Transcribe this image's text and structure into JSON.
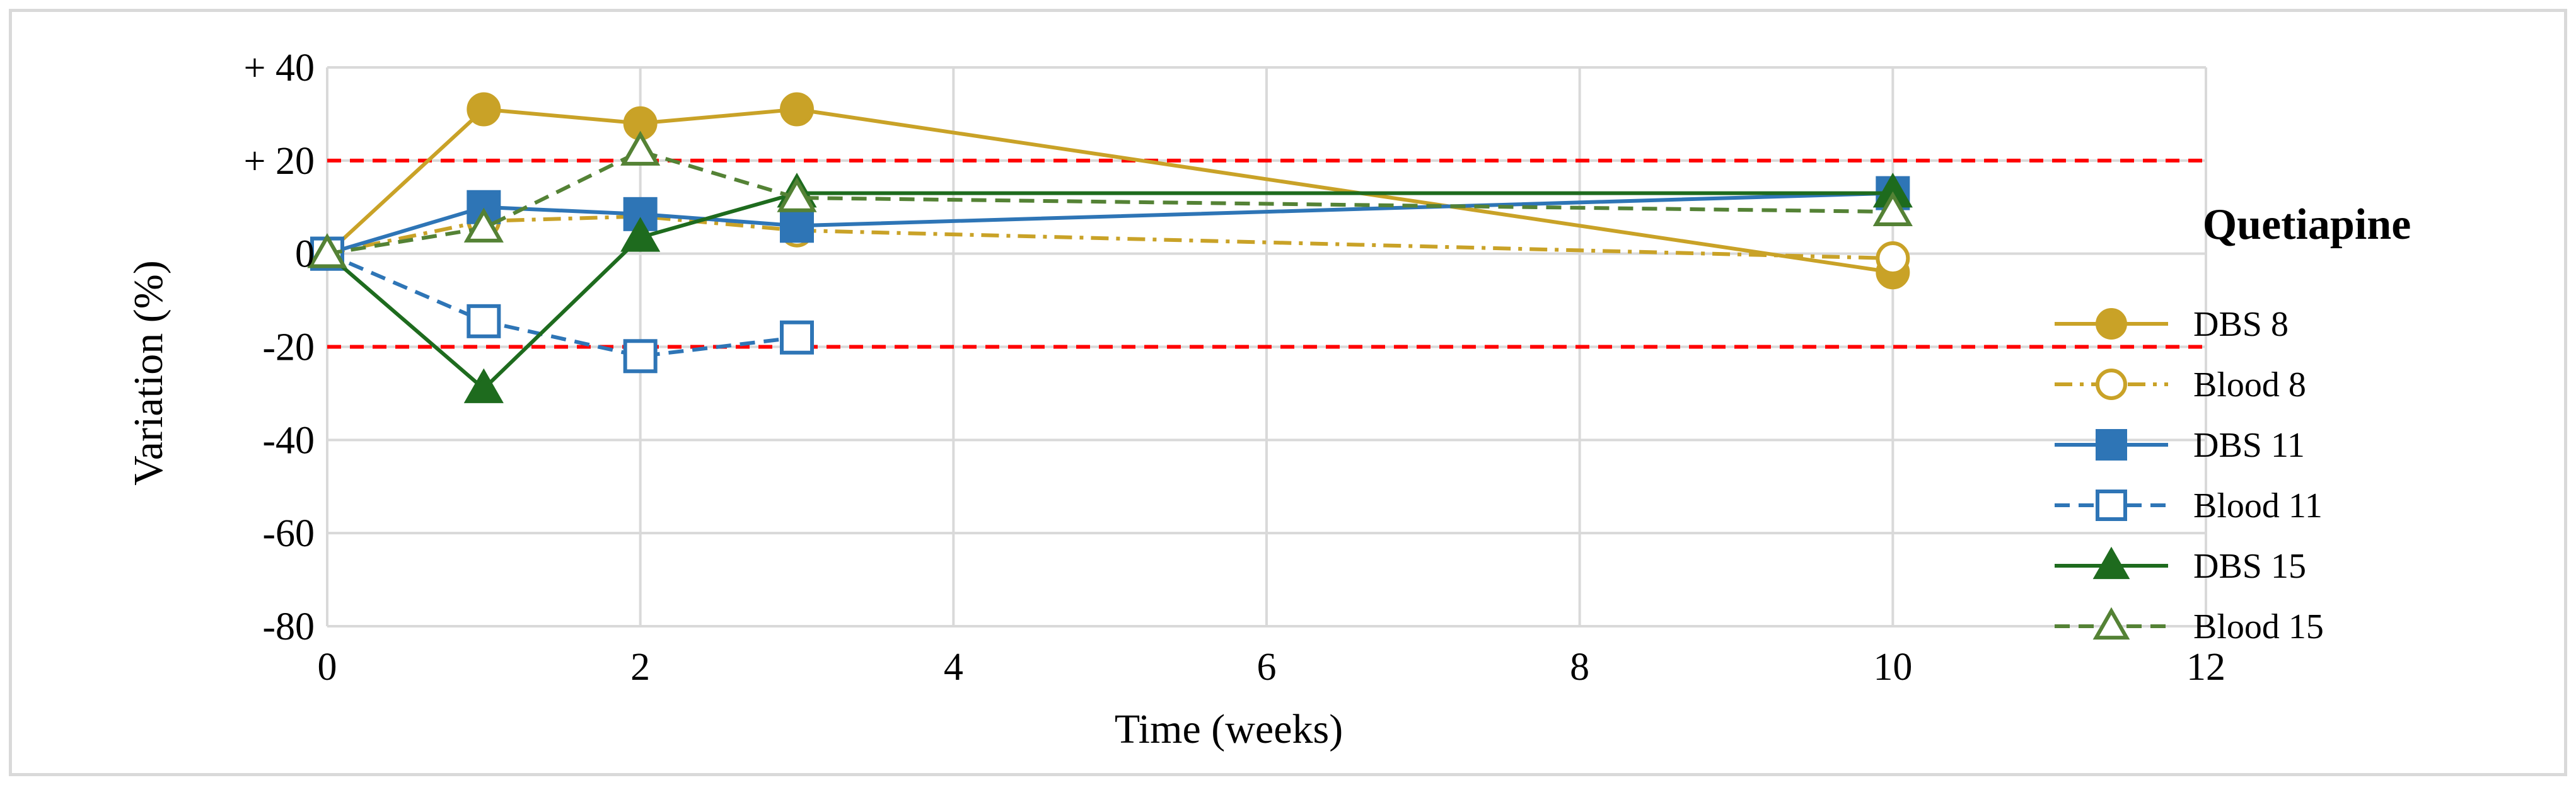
{
  "chart_data": {
    "type": "line",
    "title": "",
    "xlabel": "Time (weeks)",
    "ylabel": "Variation (%)",
    "xlim": [
      0,
      12
    ],
    "ylim": [
      -80,
      40
    ],
    "x_ticks": [
      0,
      2,
      4,
      6,
      8,
      10,
      12
    ],
    "x_tick_labels": [
      "0",
      "2",
      "4",
      "6",
      "8",
      "10",
      "12"
    ],
    "y_ticks": [
      40,
      20,
      0,
      -20,
      -40,
      -60,
      -80
    ],
    "y_tick_labels": [
      "+ 40",
      "+ 20",
      "0",
      "-20",
      "-40",
      "-60",
      "-80"
    ],
    "grid": true,
    "legend_title": "Quetiapine",
    "legend_position": "right",
    "reference_lines": [
      {
        "y": 20,
        "color": "#ff0000",
        "style": "dashed"
      },
      {
        "y": -20,
        "color": "#ff0000",
        "style": "dashed"
      }
    ],
    "series": [
      {
        "name": "DBS 8",
        "color": "#c9a227",
        "dash": "solid",
        "marker": "circle",
        "filled": true,
        "points": [
          [
            0,
            0
          ],
          [
            1,
            31
          ],
          [
            2,
            28
          ],
          [
            3,
            31
          ],
          [
            10,
            -4
          ]
        ]
      },
      {
        "name": "Blood 8",
        "color": "#c9a227",
        "dash": "dashdot",
        "marker": "circle",
        "filled": false,
        "points": [
          [
            0,
            0
          ],
          [
            1,
            7
          ],
          [
            2,
            8
          ],
          [
            3,
            5
          ],
          [
            10,
            -1
          ]
        ]
      },
      {
        "name": "DBS 11",
        "color": "#2e75b6",
        "dash": "solid",
        "marker": "square",
        "filled": true,
        "points": [
          [
            0,
            0
          ],
          [
            1,
            10
          ],
          [
            2,
            8.5
          ],
          [
            3,
            6
          ],
          [
            10,
            13
          ]
        ]
      },
      {
        "name": "Blood 11",
        "color": "#2e75b6",
        "dash": "dashed",
        "marker": "square",
        "filled": false,
        "points": [
          [
            0,
            0
          ],
          [
            1,
            -14.5
          ],
          [
            2,
            -22
          ],
          [
            3,
            -18
          ]
        ]
      },
      {
        "name": "DBS 15",
        "color": "#1e6b1e",
        "dash": "solid",
        "marker": "triangle",
        "filled": true,
        "points": [
          [
            0,
            0
          ],
          [
            1,
            -29
          ],
          [
            2,
            3.5
          ],
          [
            3,
            13
          ],
          [
            10,
            13
          ]
        ]
      },
      {
        "name": "Blood 15",
        "color": "#548235",
        "dash": "dashed",
        "marker": "triangle",
        "filled": false,
        "points": [
          [
            0,
            0
          ],
          [
            1,
            5.5
          ],
          [
            2,
            22
          ],
          [
            3,
            12
          ],
          [
            10,
            9
          ]
        ]
      }
    ]
  }
}
